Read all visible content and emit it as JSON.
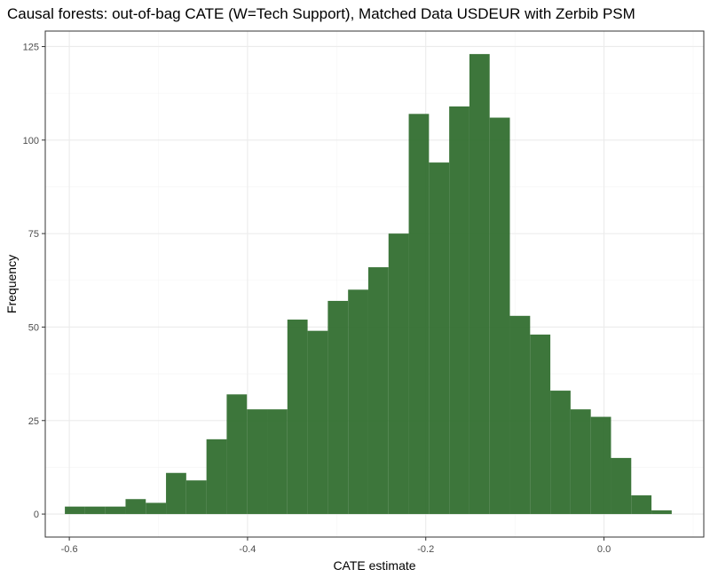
{
  "chart_data": {
    "type": "bar",
    "subtype": "histogram",
    "title": "Causal forests: out-of-bag CATE (W=Tech Support), Matched Data USDEUR with Zerbib PSM",
    "xlabel": "CATE estimate",
    "ylabel": "Frequency",
    "xlim": [
      -0.627,
      0.112
    ],
    "ylim": [
      -6.15,
      129.15
    ],
    "bin_width": 0.0227,
    "x_ticks": [
      -0.6,
      -0.4,
      -0.2,
      0.0
    ],
    "x_tick_labels": [
      "-0.6",
      "-0.4",
      "-0.2",
      "0.0"
    ],
    "y_ticks": [
      0,
      25,
      50,
      75,
      100,
      125
    ],
    "y_tick_labels": [
      "0",
      "25",
      "50",
      "75",
      "100",
      "125"
    ],
    "bins": [
      {
        "x0": -0.605,
        "x1": -0.5823,
        "count": 2
      },
      {
        "x0": -0.5823,
        "x1": -0.5596,
        "count": 2
      },
      {
        "x0": -0.5596,
        "x1": -0.5369,
        "count": 2
      },
      {
        "x0": -0.5369,
        "x1": -0.5142,
        "count": 4
      },
      {
        "x0": -0.5142,
        "x1": -0.4915,
        "count": 3
      },
      {
        "x0": -0.4915,
        "x1": -0.4688,
        "count": 11
      },
      {
        "x0": -0.4688,
        "x1": -0.4461,
        "count": 9
      },
      {
        "x0": -0.4461,
        "x1": -0.4234,
        "count": 20
      },
      {
        "x0": -0.4234,
        "x1": -0.4007,
        "count": 32
      },
      {
        "x0": -0.4007,
        "x1": -0.378,
        "count": 28
      },
      {
        "x0": -0.378,
        "x1": -0.3553,
        "count": 28
      },
      {
        "x0": -0.3553,
        "x1": -0.3326,
        "count": 52
      },
      {
        "x0": -0.3326,
        "x1": -0.3099,
        "count": 49
      },
      {
        "x0": -0.3099,
        "x1": -0.2872,
        "count": 57
      },
      {
        "x0": -0.2872,
        "x1": -0.2645,
        "count": 60
      },
      {
        "x0": -0.2645,
        "x1": -0.2418,
        "count": 66
      },
      {
        "x0": -0.2418,
        "x1": -0.2191,
        "count": 75
      },
      {
        "x0": -0.2191,
        "x1": -0.1964,
        "count": 107
      },
      {
        "x0": -0.1964,
        "x1": -0.1737,
        "count": 94
      },
      {
        "x0": -0.1737,
        "x1": -0.151,
        "count": 109
      },
      {
        "x0": -0.151,
        "x1": -0.1283,
        "count": 123
      },
      {
        "x0": -0.1283,
        "x1": -0.1056,
        "count": 106
      },
      {
        "x0": -0.1056,
        "x1": -0.0829,
        "count": 53
      },
      {
        "x0": -0.0829,
        "x1": -0.0602,
        "count": 48
      },
      {
        "x0": -0.0602,
        "x1": -0.0375,
        "count": 33
      },
      {
        "x0": -0.0375,
        "x1": -0.0148,
        "count": 28
      },
      {
        "x0": -0.0148,
        "x1": 0.0079,
        "count": 26
      },
      {
        "x0": 0.0079,
        "x1": 0.0306,
        "count": 15
      },
      {
        "x0": 0.0306,
        "x1": 0.0533,
        "count": 5
      },
      {
        "x0": 0.0533,
        "x1": 0.076,
        "count": 1
      }
    ],
    "grid": true,
    "legend": "none",
    "bar_color": "#2d6a2a",
    "bar_opacity": 0.92,
    "grid_major_color": "#ebebeb",
    "grid_minor_color": "#f5f5f5",
    "panel_border_color": "#333333"
  }
}
